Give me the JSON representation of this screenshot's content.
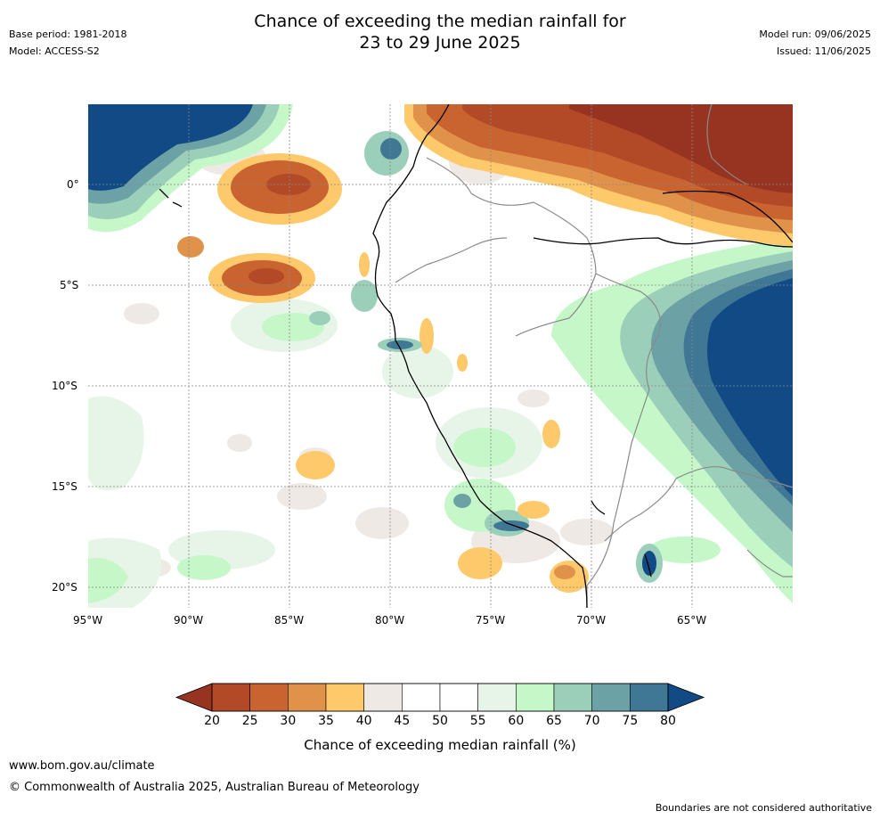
{
  "header": {
    "title_line1": "Chance of exceeding the median rainfall for",
    "title_line2": "23 to 29 June 2025",
    "base_period": "Base period: 1981-2018",
    "model": "Model: ACCESS-S2",
    "model_run": "Model run: 09/06/2025",
    "issued": "Issued: 11/06/2025"
  },
  "map": {
    "lat_labels": [
      "0°",
      "5°S",
      "10°S",
      "15°S",
      "20°S"
    ],
    "lon_labels": [
      "95°W",
      "90°W",
      "85°W",
      "80°W",
      "75°W",
      "70°W",
      "65°W"
    ],
    "colors": {
      "c20": "#973321",
      "c25": "#b34a27",
      "c30": "#c9632f",
      "c35": "#e0914a",
      "c40": "#fdc96a",
      "c45": "#efe9e5",
      "c50": "#ffffff",
      "c60": "#e7f4e8",
      "c65": "#c6f7c9",
      "c70": "#9ccfba",
      "c75": "#6ca2a6",
      "c80": "#3f7794",
      "c85": "#124a86"
    }
  },
  "colorbar": {
    "ticks": [
      "20",
      "25",
      "30",
      "35",
      "40",
      "45",
      "50",
      "55",
      "60",
      "65",
      "70",
      "75",
      "80"
    ],
    "segments": [
      "#b34a27",
      "#c9632f",
      "#e0914a",
      "#fdc96a",
      "#efe9e5",
      "#ffffff",
      "#ffffff",
      "#e7f4e8",
      "#c6f7c9",
      "#9ccfba",
      "#6ca2a6",
      "#3f7794"
    ],
    "low_color": "#973321",
    "high_color": "#124a86",
    "label": "Chance of exceeding median rainfall (%)"
  },
  "footer": {
    "url": "www.bom.gov.au/climate",
    "copyright": "© Commonwealth of Australia 2025, Australian Bureau of Meteorology",
    "disclaimer": "Boundaries are not considered authoritative"
  }
}
